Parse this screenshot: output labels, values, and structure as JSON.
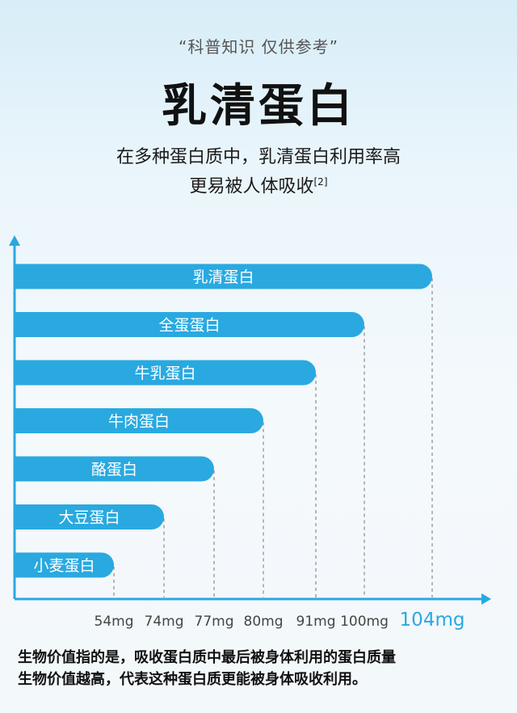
{
  "header": {
    "disclaimer": "“科普知识 仅供参考”",
    "title": "乳清蛋白",
    "subtitle_line1": "在多种蛋白质中，乳清蛋白利用率高",
    "subtitle_line2": "更易被人体吸收",
    "subtitle_ref": "[2]"
  },
  "chart_data": {
    "type": "bar",
    "orientation": "horizontal",
    "categories": [
      "乳清蛋白",
      "全蛋蛋白",
      "牛乳蛋白",
      "牛肉蛋白",
      "酪蛋白",
      "大豆蛋白",
      "小麦蛋白"
    ],
    "values": [
      104,
      100,
      91,
      80,
      77,
      74,
      54
    ],
    "tick_labels": [
      "54mg",
      "74mg",
      "77mg",
      "80mg",
      "91mg",
      "100mg",
      "104mg"
    ],
    "highlight_tick": "104mg",
    "bar_color": "#29a9e0",
    "axis_color": "#29a9e0",
    "highlight_color": "#29a9e0",
    "grid": "dashed guide lines from bar ends to x-axis"
  },
  "footnote": {
    "line1": "生物价值指的是，吸收蛋白质中最后被身体利用的蛋白质量",
    "line2": "生物价值越高，代表这种蛋白质更能被身体吸收利用。"
  }
}
